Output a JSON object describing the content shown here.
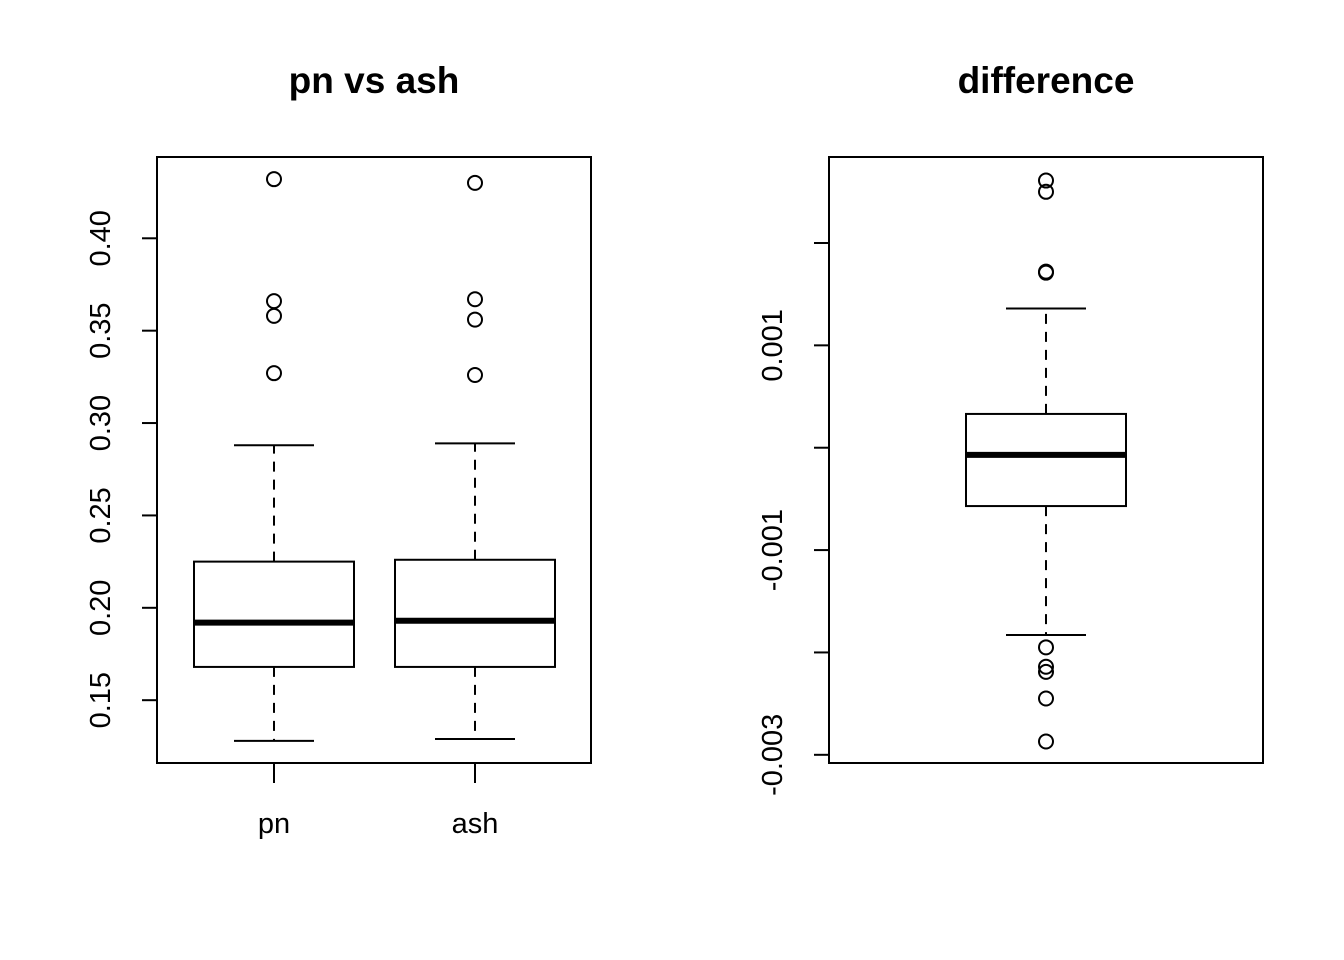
{
  "chart_data": [
    {
      "type": "boxplot",
      "title": "pn vs ash",
      "xlabel": "",
      "ylabel": "",
      "ylim": [
        0.116,
        0.444
      ],
      "y_ticks": [
        0.15,
        0.2,
        0.25,
        0.3,
        0.35,
        0.4
      ],
      "y_tick_labels": [
        "0.15",
        "0.20",
        "0.25",
        "0.30",
        "0.35",
        "0.40"
      ],
      "categories": [
        "pn",
        "ash"
      ],
      "series": [
        {
          "category": "pn",
          "whisker_low": 0.128,
          "q1": 0.168,
          "median": 0.192,
          "q3": 0.225,
          "whisker_high": 0.288,
          "outliers": [
            0.432,
            0.366,
            0.358,
            0.327
          ]
        },
        {
          "category": "ash",
          "whisker_low": 0.129,
          "q1": 0.168,
          "median": 0.193,
          "q3": 0.226,
          "whisker_high": 0.289,
          "outliers": [
            0.43,
            0.367,
            0.356,
            0.326
          ]
        }
      ],
      "grid": false
    },
    {
      "type": "boxplot",
      "title": "difference",
      "xlabel": "",
      "ylabel": "",
      "ylim": [
        -0.00308,
        0.00284
      ],
      "y_ticks": [
        -0.003,
        -0.002,
        -0.001,
        0,
        0.001,
        0.002
      ],
      "y_tick_labels": [
        "-0.003",
        "",
        "-0.001",
        "",
        "0.001",
        ""
      ],
      "categories": [
        ""
      ],
      "series": [
        {
          "category": "",
          "whisker_low": -0.00183,
          "q1": -0.00057,
          "median": -7e-05,
          "q3": 0.00033,
          "whisker_high": 0.00136,
          "outliers": [
            0.00261,
            0.0025,
            0.00172,
            0.00171,
            -0.00195,
            -0.00214,
            -0.00219,
            -0.00245,
            -0.00287
          ]
        }
      ],
      "grid": false
    }
  ]
}
